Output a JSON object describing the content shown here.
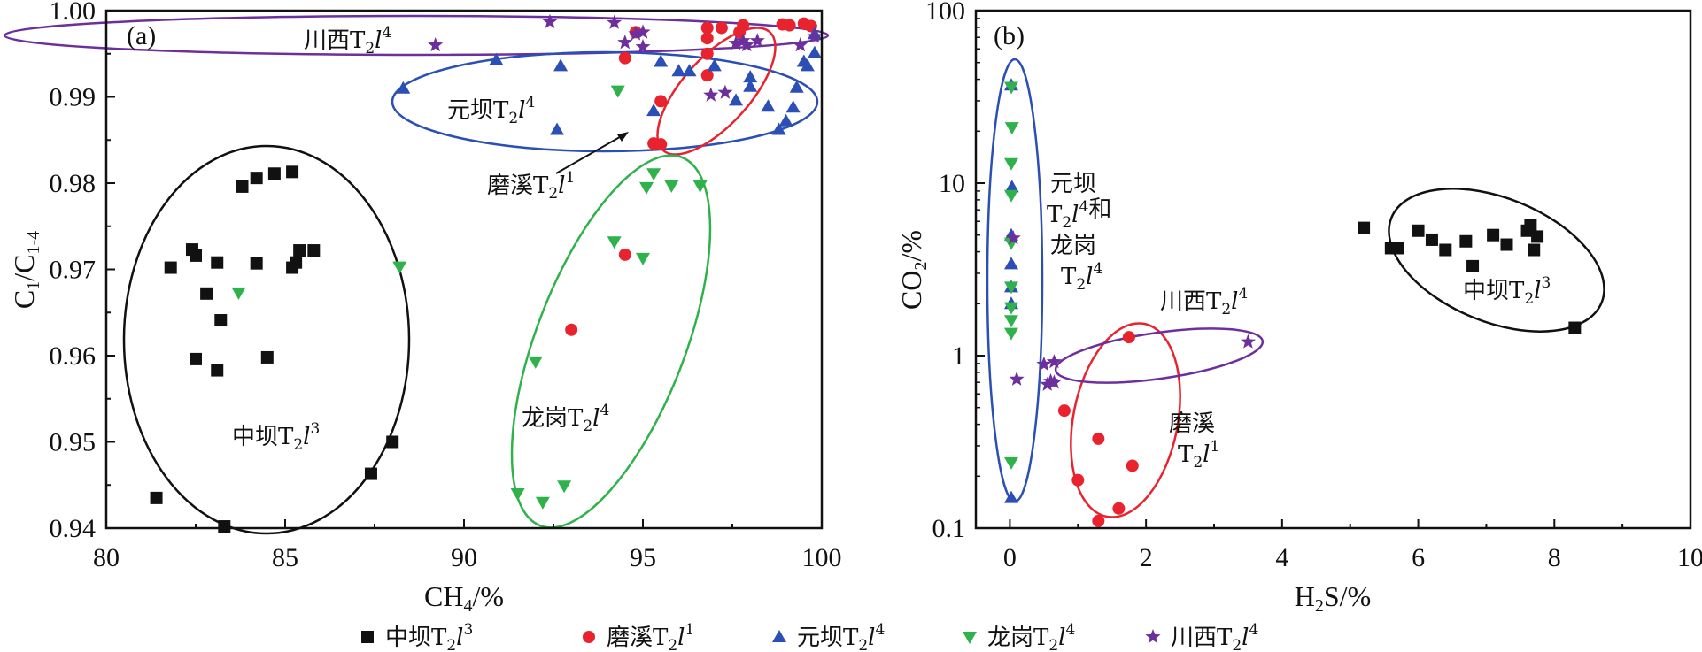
{
  "chart_data": [
    {
      "panel": "(a)",
      "type": "scatter",
      "xlabel": "CH4/%",
      "ylabel": "C1/C1-4",
      "xlim": [
        80,
        100
      ],
      "ylim": [
        0.94,
        1.0
      ],
      "xticks": [
        "80",
        "85",
        "90",
        "95",
        "100"
      ],
      "yticks": [
        "0.94",
        "0.95",
        "0.96",
        "0.97",
        "0.98",
        "0.99",
        "1.00"
      ],
      "series": [
        {
          "name": "中坝T2l3",
          "marker": "square",
          "color": "#111111",
          "points": [
            [
              81.4,
              0.9435
            ],
            [
              81.8,
              0.9702
            ],
            [
              82.4,
              0.9723
            ],
            [
              82.5,
              0.9716
            ],
            [
              82.8,
              0.9672
            ],
            [
              83.1,
              0.9708
            ],
            [
              83.2,
              0.9641
            ],
            [
              82.5,
              0.9596
            ],
            [
              83.1,
              0.9583
            ],
            [
              83.8,
              0.9796
            ],
            [
              84.2,
              0.9806
            ],
            [
              84.2,
              0.9707
            ],
            [
              84.7,
              0.9811
            ],
            [
              85.2,
              0.9813
            ],
            [
              85.2,
              0.9702
            ],
            [
              85.3,
              0.9708
            ],
            [
              85.4,
              0.9722
            ],
            [
              85.8,
              0.9722
            ],
            [
              84.5,
              0.9598
            ],
            [
              87.4,
              0.9463
            ],
            [
              88.0,
              0.95
            ],
            [
              83.3,
              0.9402
            ]
          ]
        },
        {
          "name": "磨溪T2l1",
          "marker": "circle",
          "color": "#e8232e",
          "points": [
            [
              93.0,
              0.963
            ],
            [
              94.5,
              0.9717
            ],
            [
              94.5,
              0.9945
            ],
            [
              94.8,
              0.9975
            ],
            [
              95.3,
              0.9846
            ],
            [
              95.5,
              0.9845
            ],
            [
              95.5,
              0.9895
            ],
            [
              96.8,
              0.9925
            ],
            [
              96.8,
              0.995
            ],
            [
              96.8,
              0.9968
            ],
            [
              96.8,
              0.998
            ],
            [
              97.2,
              0.998
            ],
            [
              97.7,
              0.9975
            ],
            [
              97.8,
              0.9983
            ],
            [
              98.9,
              0.9984
            ],
            [
              99.1,
              0.9983
            ],
            [
              99.5,
              0.9985
            ],
            [
              99.7,
              0.9982
            ]
          ]
        },
        {
          "name": "元坝T2l4",
          "marker": "triangle-up",
          "color": "#2b4fb5",
          "points": [
            [
              88.3,
              0.991
            ],
            [
              90.9,
              0.9943
            ],
            [
              92.6,
              0.9862
            ],
            [
              92.7,
              0.9936
            ],
            [
              95.3,
              0.9884
            ],
            [
              95.5,
              0.9941
            ],
            [
              96.0,
              0.993
            ],
            [
              96.3,
              0.993
            ],
            [
              97.0,
              0.9936
            ],
            [
              97.6,
              0.9896
            ],
            [
              98.0,
              0.9923
            ],
            [
              98.0,
              0.9912
            ],
            [
              98.5,
              0.9889
            ],
            [
              98.8,
              0.9862
            ],
            [
              99.0,
              0.9872
            ],
            [
              99.2,
              0.9888
            ],
            [
              99.3,
              0.9911
            ],
            [
              99.5,
              0.9941
            ],
            [
              99.6,
              0.9936
            ],
            [
              99.8,
              0.9951
            ],
            [
              99.8,
              0.9973
            ]
          ]
        },
        {
          "name": "龙岗T2l4",
          "marker": "triangle-down",
          "color": "#2fb24c",
          "points": [
            [
              83.7,
              0.9673
            ],
            [
              88.2,
              0.9703
            ],
            [
              91.5,
              0.944
            ],
            [
              92.0,
              0.9593
            ],
            [
              92.2,
              0.943
            ],
            [
              92.8,
              0.9449
            ],
            [
              94.2,
              0.9732
            ],
            [
              94.3,
              0.9907
            ],
            [
              95.0,
              0.9713
            ],
            [
              95.1,
              0.9795
            ],
            [
              95.3,
              0.9811
            ],
            [
              95.8,
              0.9797
            ],
            [
              96.6,
              0.9797
            ]
          ]
        },
        {
          "name": "川西T2l4",
          "marker": "star",
          "color": "#6d2f9e",
          "points": [
            [
              89.2,
              0.996
            ],
            [
              92.4,
              0.9987
            ],
            [
              94.2,
              0.9986
            ],
            [
              94.5,
              0.9963
            ],
            [
              94.8,
              0.9973
            ],
            [
              95.0,
              0.9975
            ],
            [
              95.0,
              0.9958
            ],
            [
              96.9,
              0.9902
            ],
            [
              97.3,
              0.9905
            ],
            [
              97.6,
              0.9962
            ],
            [
              97.8,
              0.9965
            ],
            [
              97.9,
              0.996
            ],
            [
              98.2,
              0.9965
            ],
            [
              99.4,
              0.996
            ],
            [
              99.8,
              0.997
            ]
          ]
        }
      ],
      "annotations": [
        {
          "text": "川西T2l4"
        },
        {
          "text": "元坝T2l4"
        },
        {
          "text": "磨溪T2l1"
        },
        {
          "text": "龙岗T2l4"
        },
        {
          "text": "中坝T2l3"
        }
      ]
    },
    {
      "panel": "(b)",
      "type": "scatter",
      "xlabel": "H2S/%",
      "ylabel": "CO2/%",
      "xlim": [
        -0.5,
        10
      ],
      "ylim": [
        0.1,
        100
      ],
      "yscale": "log",
      "xticks": [
        "0",
        "2",
        "4",
        "6",
        "8",
        "10"
      ],
      "yticks": [
        "0.1",
        "1",
        "10",
        "100"
      ],
      "series": [
        {
          "name": "中坝T2l3",
          "marker": "square",
          "color": "#111111",
          "points": [
            [
              5.2,
              5.5
            ],
            [
              5.6,
              4.2
            ],
            [
              5.7,
              4.2
            ],
            [
              6.0,
              5.3
            ],
            [
              6.2,
              4.7
            ],
            [
              6.4,
              4.1
            ],
            [
              6.7,
              4.6
            ],
            [
              6.8,
              3.3
            ],
            [
              7.1,
              5.0
            ],
            [
              7.3,
              4.4
            ],
            [
              7.6,
              5.3
            ],
            [
              7.65,
              5.7
            ],
            [
              7.7,
              4.1
            ],
            [
              7.75,
              4.9
            ],
            [
              8.3,
              1.45
            ]
          ]
        },
        {
          "name": "磨溪T2l1",
          "marker": "circle",
          "color": "#e8232e",
          "points": [
            [
              0.8,
              0.48
            ],
            [
              1.0,
              0.19
            ],
            [
              1.3,
              0.33
            ],
            [
              1.3,
              0.11
            ],
            [
              1.6,
              0.13
            ],
            [
              1.75,
              1.28
            ],
            [
              1.8,
              0.23
            ]
          ]
        },
        {
          "name": "元坝T2l4",
          "marker": "triangle-up",
          "color": "#2b4fb5",
          "points": [
            [
              0.02,
              37
            ],
            [
              0.03,
              9.5
            ],
            [
              0.02,
              5.0
            ],
            [
              0.02,
              3.4
            ],
            [
              0.02,
              2.5
            ],
            [
              0.02,
              2.0
            ],
            [
              0.02,
              0.15
            ]
          ]
        },
        {
          "name": "龙岗T2l4",
          "marker": "triangle-down",
          "color": "#2fb24c",
          "points": [
            [
              0.02,
              36
            ],
            [
              0.03,
              21
            ],
            [
              0.02,
              13
            ],
            [
              0.02,
              8.5
            ],
            [
              0.02,
              4.5
            ],
            [
              0.02,
              2.5
            ],
            [
              0.02,
              1.9
            ],
            [
              0.02,
              1.6
            ],
            [
              0.02,
              1.35
            ],
            [
              0.02,
              0.24
            ]
          ]
        },
        {
          "name": "川西T2l4",
          "marker": "star",
          "color": "#6d2f9e",
          "points": [
            [
              0.05,
              4.8
            ],
            [
              0.1,
              0.73
            ],
            [
              0.5,
              0.89
            ],
            [
              0.55,
              0.68
            ],
            [
              0.6,
              0.71
            ],
            [
              0.65,
              0.92
            ],
            [
              0.65,
              0.7
            ],
            [
              3.5,
              1.2
            ]
          ]
        }
      ],
      "annotations": [
        {
          "text": "元坝"
        },
        {
          "text": "T2l4和"
        },
        {
          "text": "龙岗"
        },
        {
          "text": "T2l4"
        },
        {
          "text": "川西T2l4"
        },
        {
          "text": "磨溪"
        },
        {
          "text": "T2l1"
        },
        {
          "text": "中坝T2l3"
        }
      ]
    }
  ],
  "legend": [
    {
      "label": "中坝T2l3",
      "marker": "square",
      "color": "#111111"
    },
    {
      "label": "磨溪T2l1",
      "marker": "circle",
      "color": "#e8232e"
    },
    {
      "label": "元坝T2l4",
      "marker": "triangle-up",
      "color": "#2b4fb5"
    },
    {
      "label": "龙岗T2l4",
      "marker": "triangle-down",
      "color": "#2fb24c"
    },
    {
      "label": "川西T2l4",
      "marker": "star",
      "color": "#6d2f9e"
    }
  ]
}
